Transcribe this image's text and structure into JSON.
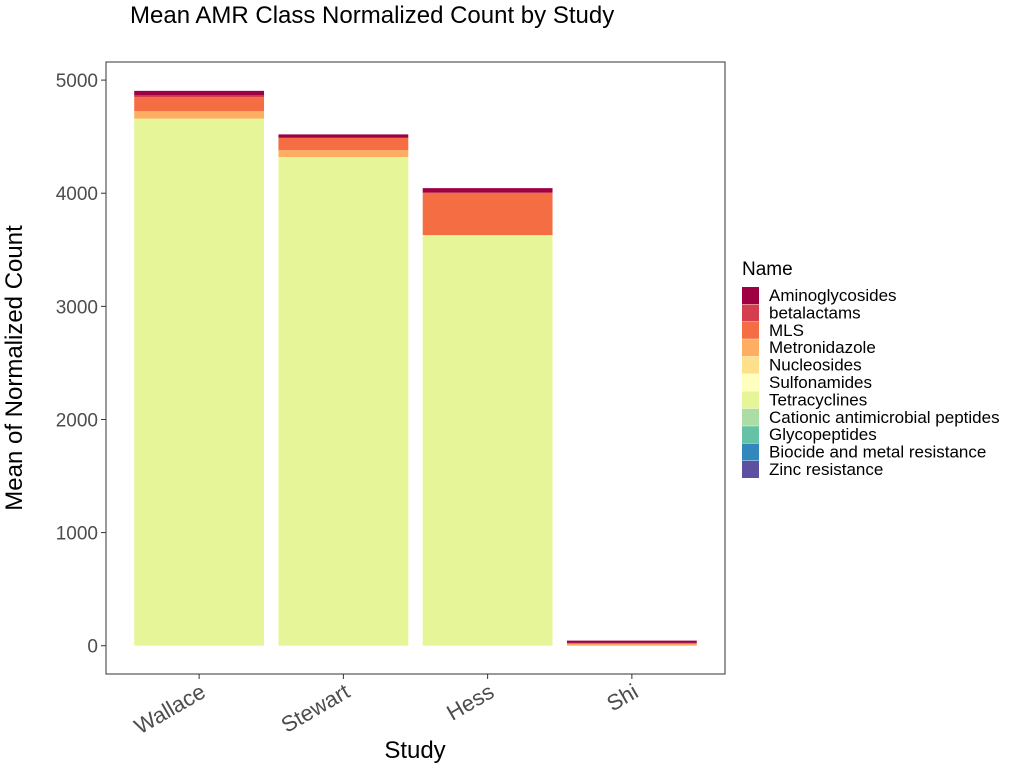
{
  "chart_data": {
    "type": "bar",
    "stacked": true,
    "title": "Mean AMR Class Normalized Count by Study",
    "xlabel": "Study",
    "ylabel": "Mean of Normalized Count",
    "categories": [
      "Wallace",
      "Stewart",
      "Hess",
      "Shi"
    ],
    "y_ticks": [
      "0",
      "1000",
      "2000",
      "3000",
      "4000",
      "5000"
    ],
    "ylim": [
      -250,
      5160
    ],
    "grid": false,
    "legend": {
      "title": "Name",
      "position": "right"
    },
    "series": [
      {
        "name": "Tetracyclines",
        "color": "#e6f598",
        "values": [
          4660,
          4320,
          3630,
          0
        ]
      },
      {
        "name": "Sulfonamides",
        "color": "#ffffbf",
        "values": [
          0,
          0,
          0,
          0
        ]
      },
      {
        "name": "Nucleosides",
        "color": "#fee08b",
        "values": [
          0,
          0,
          0,
          0
        ]
      },
      {
        "name": "Metronidazole",
        "color": "#fdae61",
        "values": [
          65,
          60,
          0,
          15
        ]
      },
      {
        "name": "MLS",
        "color": "#f46d43",
        "values": [
          125,
          110,
          375,
          10
        ]
      },
      {
        "name": "betalactams",
        "color": "#d53e4f",
        "values": [
          15,
          0,
          0,
          0
        ]
      },
      {
        "name": "Aminoglycosides",
        "color": "#9e0142",
        "values": [
          40,
          30,
          40,
          20
        ]
      },
      {
        "name": "Cationic antimicrobial peptides",
        "color": "#abdda4",
        "values": [
          0,
          0,
          0,
          0
        ]
      },
      {
        "name": "Glycopeptides",
        "color": "#66c2a5",
        "values": [
          0,
          0,
          0,
          0
        ]
      },
      {
        "name": "Biocide and metal resistance",
        "color": "#3288bd",
        "values": [
          0,
          0,
          0,
          0
        ]
      },
      {
        "name": "Zinc resistance",
        "color": "#5e4fa2",
        "values": [
          0,
          0,
          0,
          0
        ]
      }
    ],
    "legend_order": [
      "Aminoglycosides",
      "betalactams",
      "MLS",
      "Metronidazole",
      "Nucleosides",
      "Sulfonamides",
      "Tetracyclines",
      "Cationic antimicrobial peptides",
      "Glycopeptides",
      "Biocide and metal resistance",
      "Zinc resistance"
    ]
  }
}
